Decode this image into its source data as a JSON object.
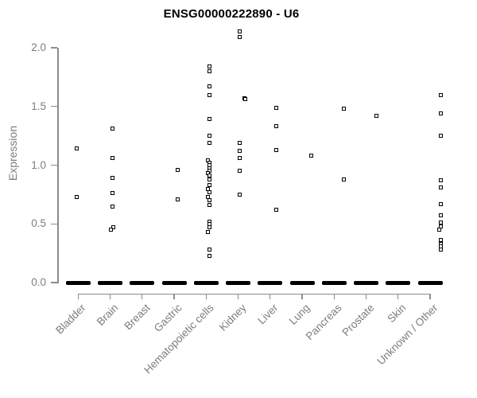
{
  "chart_data": {
    "type": "scatter",
    "title": "ENSG00000222890 - U6",
    "ylabel": "Expression",
    "xlabel": "",
    "ylim": [
      0.0,
      2.15
    ],
    "yticks": [
      0.0,
      0.5,
      1.0,
      1.5,
      2.0
    ],
    "ytick_labels": [
      "0.0",
      "0.5",
      "1.0",
      "1.5",
      "2.0"
    ],
    "grid": false,
    "legend": null,
    "marker": "open-square",
    "zero_bar_note": "thick black dash at y=0 in every category representing many overlapping zero-expression samples",
    "colors": {
      "marker": "#000000",
      "zero_bar": "#000000",
      "axis": "#8c8c8c",
      "tick_text": "#7d7d7d",
      "title_text": "#000000",
      "background": "#ffffff"
    },
    "categories": [
      {
        "label": "Bladder",
        "zero_bar": true,
        "points": [
          [
            1.14,
            -2
          ],
          [
            0.73,
            -2
          ]
        ]
      },
      {
        "label": "Brain",
        "zero_bar": true,
        "points": [
          [
            1.31,
            3
          ],
          [
            1.06,
            3
          ],
          [
            0.89,
            3
          ],
          [
            0.76,
            3
          ],
          [
            0.65,
            3
          ],
          [
            0.47,
            4
          ],
          [
            0.45,
            1
          ]
        ]
      },
      {
        "label": "Breast",
        "zero_bar": true,
        "points": []
      },
      {
        "label": "Gastric",
        "zero_bar": true,
        "points": [
          [
            0.96,
            4
          ],
          [
            0.71,
            4
          ]
        ]
      },
      {
        "label": "Hematopoietic cells",
        "zero_bar": true,
        "points": [
          [
            1.84,
            4
          ],
          [
            1.8,
            4
          ],
          [
            1.67,
            4
          ],
          [
            1.6,
            4
          ],
          [
            1.39,
            4
          ],
          [
            1.25,
            4
          ],
          [
            1.19,
            4
          ],
          [
            1.04,
            2
          ],
          [
            1.02,
            4
          ],
          [
            1.0,
            4
          ],
          [
            0.97,
            4
          ],
          [
            0.95,
            4
          ],
          [
            0.93,
            2
          ],
          [
            0.91,
            4
          ],
          [
            0.88,
            4
          ],
          [
            0.83,
            4
          ],
          [
            0.8,
            2
          ],
          [
            0.77,
            4
          ],
          [
            0.73,
            2
          ],
          [
            0.7,
            4
          ],
          [
            0.66,
            4
          ],
          [
            0.52,
            4
          ],
          [
            0.5,
            4
          ],
          [
            0.47,
            4
          ],
          [
            0.43,
            2
          ],
          [
            0.28,
            4
          ],
          [
            0.23,
            4
          ]
        ]
      },
      {
        "label": "Kidney",
        "zero_bar": true,
        "points": [
          [
            2.14,
            2
          ],
          [
            2.09,
            2
          ],
          [
            1.57,
            8
          ],
          [
            1.56,
            9
          ],
          [
            1.19,
            2
          ],
          [
            1.12,
            2
          ],
          [
            1.06,
            2
          ],
          [
            0.95,
            2
          ],
          [
            0.75,
            2
          ]
        ]
      },
      {
        "label": "Liver",
        "zero_bar": true,
        "points": [
          [
            1.49,
            8
          ],
          [
            1.33,
            8
          ],
          [
            1.13,
            8
          ],
          [
            0.62,
            8
          ]
        ]
      },
      {
        "label": "Lung",
        "zero_bar": true,
        "points": [
          [
            1.08,
            11
          ]
        ]
      },
      {
        "label": "Pancreas",
        "zero_bar": true,
        "points": [
          [
            1.48,
            12
          ],
          [
            0.88,
            12
          ]
        ]
      },
      {
        "label": "Prostate",
        "zero_bar": true,
        "points": [
          [
            1.42,
            13
          ]
        ]
      },
      {
        "label": "Skin",
        "zero_bar": true,
        "points": []
      },
      {
        "label": "Unknown / Other",
        "zero_bar": true,
        "points": [
          [
            1.6,
            13
          ],
          [
            1.44,
            13
          ],
          [
            1.25,
            13
          ],
          [
            0.87,
            13
          ],
          [
            0.81,
            13
          ],
          [
            0.67,
            13
          ],
          [
            0.57,
            13
          ],
          [
            0.51,
            13
          ],
          [
            0.48,
            13
          ],
          [
            0.45,
            11
          ],
          [
            0.36,
            13
          ],
          [
            0.33,
            13
          ],
          [
            0.31,
            13
          ],
          [
            0.28,
            13
          ]
        ]
      }
    ]
  }
}
